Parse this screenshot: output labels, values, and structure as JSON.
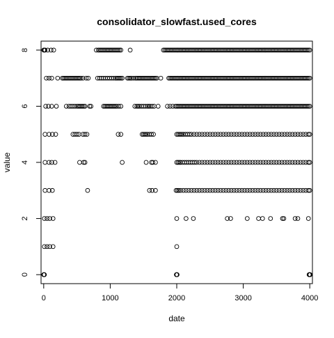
{
  "chart_data": {
    "type": "scatter",
    "title": "consolidator_slowfast.used_cores",
    "xlabel": "date",
    "ylabel": "value",
    "xlim": [
      -40,
      4040
    ],
    "ylim": [
      -0.32,
      8.32
    ],
    "x_ticks": [
      0,
      1000,
      2000,
      3000,
      4000
    ],
    "y_ticks": [
      0,
      2,
      4,
      6,
      8
    ],
    "x_tick_labels": [
      "0",
      "1000",
      "2000",
      "3000",
      "4000"
    ],
    "y_tick_labels": [
      "0",
      "2",
      "4",
      "6",
      "8"
    ],
    "grid": false,
    "legend": "none",
    "marker": "open-circle",
    "color": "#000000",
    "points_by_level": [
      {
        "y": 8,
        "x": [
          0,
          10,
          20,
          60,
          110,
          150,
          790,
          820,
          840,
          860,
          880,
          900,
          920,
          940,
          960,
          980,
          1000,
          1020,
          1040,
          1060,
          1080,
          1100,
          1120,
          1140,
          1160,
          1300,
          1800,
          1820,
          1840,
          1860,
          1880,
          1900,
          1920,
          1940,
          1960,
          1980,
          2000,
          2020,
          2040,
          2060,
          2080,
          2100,
          2120,
          2140,
          2160,
          2180,
          2200,
          2220,
          2240,
          2260,
          2280,
          2300,
          2320,
          2340,
          2360,
          2380,
          2400,
          2420,
          2440,
          2460,
          2480,
          2500,
          2520,
          2540,
          2560,
          2580,
          2600,
          2620,
          2640,
          2660,
          2680,
          2700,
          2720,
          2740,
          2760,
          2780,
          2800,
          2820,
          2840,
          2860,
          2880,
          2900,
          2920,
          2940,
          2960,
          2980,
          3000,
          3020,
          3040,
          3060,
          3080,
          3100,
          3120,
          3140,
          3160,
          3180,
          3200,
          3220,
          3240,
          3260,
          3280,
          3300,
          3320,
          3340,
          3360,
          3380,
          3400,
          3420,
          3440,
          3460,
          3480,
          3500,
          3520,
          3540,
          3560,
          3580,
          3600,
          3620,
          3640,
          3660,
          3680,
          3700,
          3720,
          3740,
          3760,
          3780,
          3800,
          3820,
          3840,
          3860,
          3880,
          3900,
          3920,
          3940,
          3960,
          3980,
          4000
        ]
      },
      {
        "y": 7,
        "x": [
          40,
          80,
          120,
          210,
          280,
          300,
          320,
          340,
          360,
          380,
          400,
          420,
          440,
          460,
          480,
          500,
          520,
          540,
          560,
          590,
          640,
          670,
          810,
          840,
          870,
          900,
          930,
          960,
          990,
          1020,
          1050,
          1080,
          1100,
          1120,
          1140,
          1160,
          1180,
          1260,
          1280,
          1300,
          1320,
          1350,
          1380,
          1400,
          1420,
          1440,
          1460,
          1480,
          1500,
          1520,
          1540,
          1560,
          1580,
          1600,
          1620,
          1640,
          1660,
          1680,
          1700,
          1760,
          1880,
          1900,
          1920,
          1940,
          1960,
          1980,
          2000,
          2020,
          2040,
          2060,
          2080,
          2100,
          2120,
          2140,
          2160,
          2180,
          2200,
          2220,
          2240,
          2260,
          2280,
          2300,
          2320,
          2340,
          2360,
          2380,
          2400,
          2420,
          2440,
          2460,
          2480,
          2500,
          2520,
          2540,
          2560,
          2580,
          2600,
          2620,
          2640,
          2660,
          2680,
          2700,
          2720,
          2740,
          2760,
          2780,
          2800,
          2820,
          2840,
          2860,
          2880,
          2900,
          2920,
          2940,
          2960,
          2980,
          3000,
          3020,
          3040,
          3060,
          3080,
          3100,
          3120,
          3140,
          3160,
          3180,
          3200,
          3220,
          3240,
          3260,
          3280,
          3300,
          3320,
          3340,
          3360,
          3380,
          3400,
          3420,
          3440,
          3460,
          3480,
          3500,
          3520,
          3540,
          3560,
          3580,
          3600,
          3620,
          3640,
          3660,
          3680,
          3700,
          3720,
          3740,
          3760,
          3780,
          3800,
          3820,
          3840,
          3860,
          3880,
          3900,
          3920,
          3940,
          3960,
          3980,
          4000
        ]
      },
      {
        "y": 6,
        "x": [
          30,
          70,
          120,
          190,
          340,
          380,
          410,
          440,
          470,
          500,
          520,
          540,
          560,
          580,
          600,
          620,
          690,
          710,
          900,
          920,
          940,
          960,
          980,
          1000,
          1020,
          1040,
          1060,
          1080,
          1100,
          1130,
          1160,
          1370,
          1400,
          1420,
          1440,
          1470,
          1500,
          1530,
          1560,
          1580,
          1600,
          1630,
          1660,
          1720,
          1860,
          1900,
          1940,
          1980,
          2000,
          2020,
          2040,
          2060,
          2080,
          2100,
          2120,
          2140,
          2160,
          2180,
          2200,
          2220,
          2240,
          2260,
          2280,
          2300,
          2320,
          2340,
          2360,
          2380,
          2400,
          2420,
          2440,
          2460,
          2480,
          2500,
          2520,
          2540,
          2560,
          2580,
          2600,
          2620,
          2640,
          2660,
          2680,
          2700,
          2720,
          2740,
          2760,
          2780,
          2800,
          2820,
          2840,
          2860,
          2880,
          2900,
          2920,
          2940,
          2960,
          2980,
          3000,
          3020,
          3040,
          3060,
          3080,
          3100,
          3120,
          3140,
          3160,
          3180,
          3200,
          3220,
          3240,
          3260,
          3280,
          3300,
          3320,
          3340,
          3360,
          3380,
          3400,
          3420,
          3440,
          3460,
          3480,
          3500,
          3520,
          3540,
          3560,
          3580,
          3600,
          3620,
          3640,
          3660,
          3680,
          3700,
          3720,
          3740,
          3760,
          3780,
          3800,
          3820,
          3840,
          3860,
          3880,
          3900,
          3920,
          3940,
          3960,
          3980,
          4000
        ]
      },
      {
        "y": 5,
        "x": [
          20,
          80,
          130,
          180,
          440,
          470,
          500,
          530,
          590,
          620,
          650,
          1120,
          1160,
          1480,
          1500,
          1520,
          1540,
          1560,
          1590,
          1620,
          1650,
          2000,
          2020,
          2040,
          2060,
          2080,
          2100,
          2130,
          2160,
          2190,
          2220,
          2260,
          2300,
          2340,
          2380,
          2420,
          2460,
          2500,
          2540,
          2580,
          2620,
          2660,
          2700,
          2740,
          2780,
          2820,
          2860,
          2900,
          2940,
          2980,
          3020,
          3060,
          3100,
          3140,
          3180,
          3220,
          3260,
          3300,
          3340,
          3380,
          3420,
          3460,
          3500,
          3540,
          3580,
          3620,
          3660,
          3700,
          3740,
          3780,
          3820,
          3860,
          3900,
          3940,
          3980,
          4000
        ]
      },
      {
        "y": 4,
        "x": [
          20,
          80,
          120,
          170,
          540,
          600,
          620,
          1180,
          1540,
          1620,
          1640,
          1680,
          2000,
          2020,
          2040,
          2060,
          2090,
          2120,
          2150,
          2180,
          2210,
          2240,
          2270,
          2300,
          2340,
          2380,
          2420,
          2460,
          2500,
          2540,
          2580,
          2620,
          2660,
          2700,
          2740,
          2780,
          2820,
          2860,
          2900,
          2940,
          2980,
          3020,
          3060,
          3100,
          3140,
          3180,
          3220,
          3260,
          3300,
          3340,
          3380,
          3420,
          3460,
          3500,
          3540,
          3580,
          3620,
          3660,
          3700,
          3740,
          3780,
          3820,
          3860,
          3900,
          3940,
          3980,
          4000
        ]
      },
      {
        "y": 3,
        "x": [
          20,
          80,
          130,
          660,
          1590,
          1630,
          1680,
          1990,
          2010,
          2030,
          2060,
          2100,
          2140,
          2180,
          2220,
          2260,
          2300,
          2340,
          2380,
          2420,
          2460,
          2500,
          2540,
          2580,
          2620,
          2660,
          2700,
          2740,
          2780,
          2820,
          2860,
          2900,
          2940,
          2980,
          3020,
          3060,
          3100,
          3140,
          3180,
          3220,
          3260,
          3300,
          3340,
          3380,
          3420,
          3460,
          3500,
          3540,
          3580,
          3620,
          3660,
          3700,
          3740,
          3780,
          3820,
          3860,
          3900,
          3940,
          3980,
          4000
        ]
      },
      {
        "y": 2,
        "x": [
          10,
          50,
          90,
          140,
          2000,
          2140,
          2250,
          2760,
          2810,
          3060,
          3230,
          3290,
          3410,
          3590,
          3610,
          3780,
          3820,
          3980
        ]
      },
      {
        "y": 1,
        "x": [
          10,
          50,
          90,
          140,
          2000
        ]
      },
      {
        "y": 0,
        "x": [
          0,
          5,
          10,
          1995,
          2000,
          2005,
          3990,
          3995,
          4000,
          4005
        ]
      }
    ]
  }
}
